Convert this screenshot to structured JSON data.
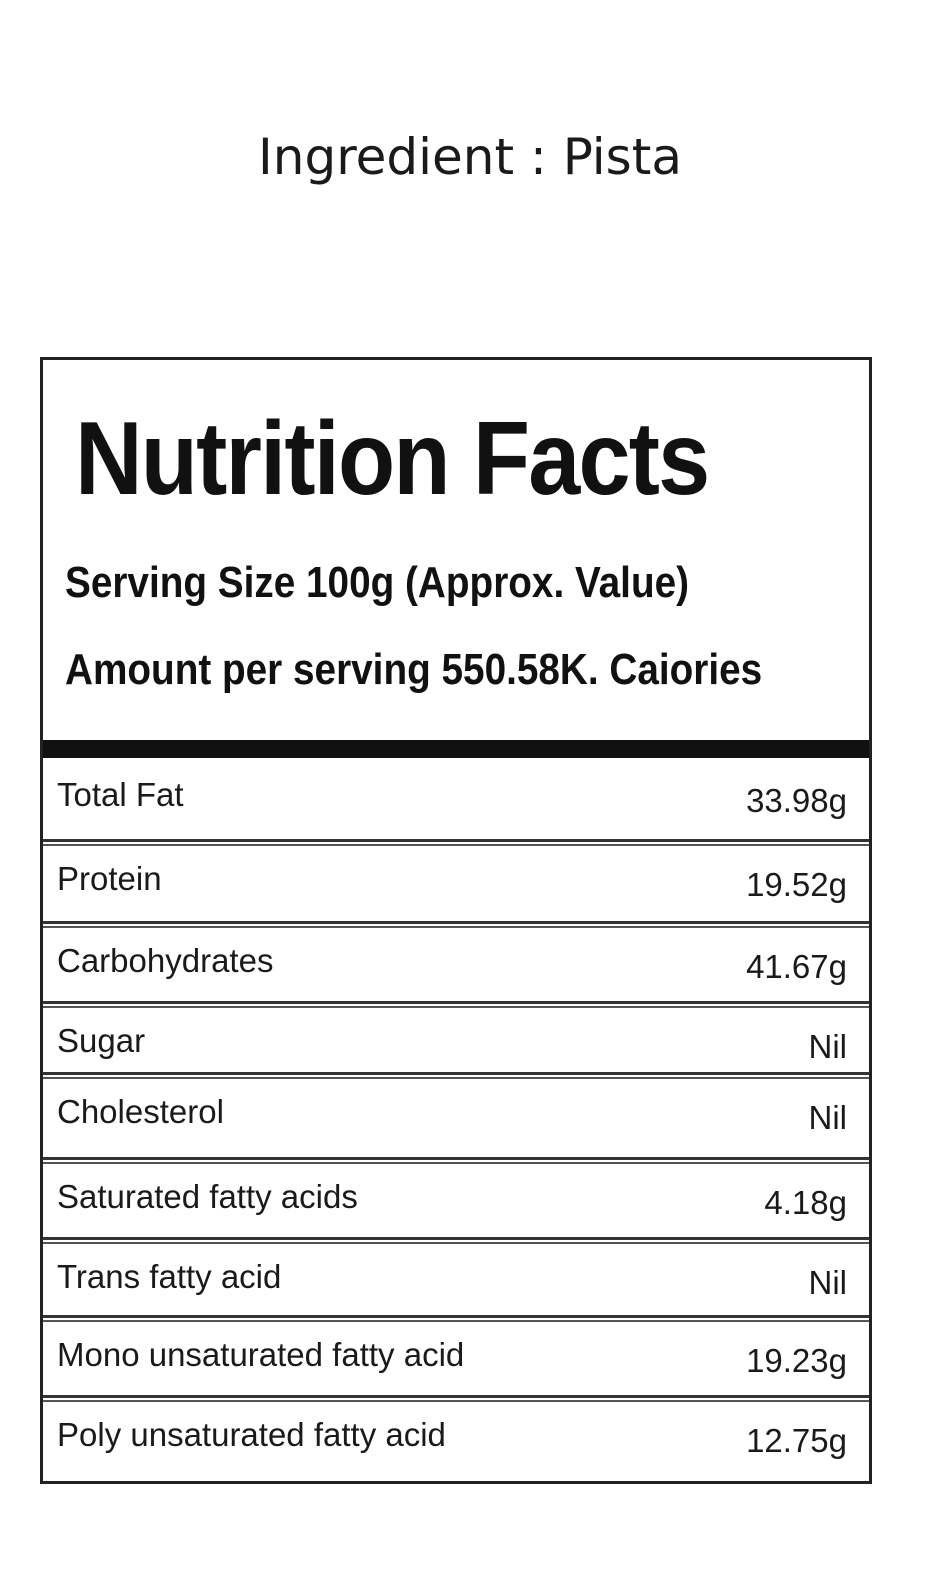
{
  "ingredient_title": "Ingredient : Pista",
  "label": {
    "title": "Nutrition Facts",
    "serving_size": "Serving Size 100g (Approx. Value)",
    "amount_per_serving": "Amount per serving 550.58K. Caiories",
    "rows": [
      {
        "name": "Total Fat",
        "value": "33.98g"
      },
      {
        "name": "Protein",
        "value": "19.52g"
      },
      {
        "name": "Carbohydrates",
        "value": "41.67g"
      },
      {
        "name": "Sugar",
        "value": "Nil"
      },
      {
        "name": "Cholesterol",
        "value": "Nil"
      },
      {
        "name": "Saturated fatty acids",
        "value": "4.18g"
      },
      {
        "name": "Trans fatty acid",
        "value": "Nil"
      },
      {
        "name": "Mono unsaturated fatty acid",
        "value": "19.23g"
      },
      {
        "name": "Poly unsaturated fatty acid",
        "value": "12.75g"
      }
    ]
  }
}
